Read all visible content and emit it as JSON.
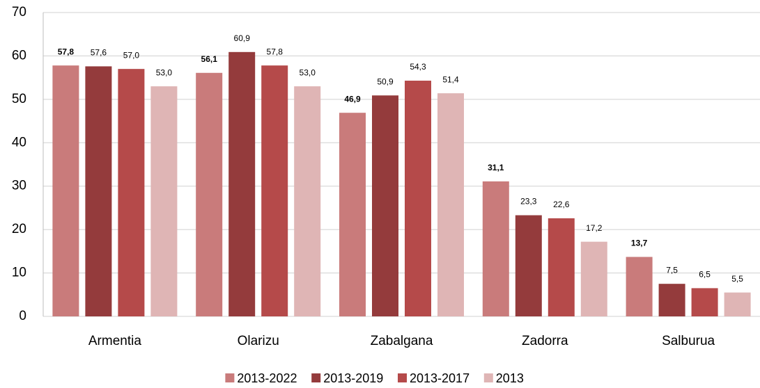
{
  "chart_data": {
    "type": "bar",
    "categories": [
      "Armentia",
      "Olarizu",
      "Zabalgana",
      "Zadorra",
      "Salburua"
    ],
    "series": [
      {
        "name": "2013-2022",
        "color": "#c97b7b",
        "values": [
          57.8,
          56.1,
          46.9,
          31.1,
          13.7
        ],
        "value_labels": [
          "57,8",
          "56,1",
          "46,9",
          "31,1",
          "13,7"
        ]
      },
      {
        "name": "2013-2019",
        "color": "#943b3c",
        "values": [
          57.6,
          60.9,
          50.9,
          23.3,
          7.5
        ],
        "value_labels": [
          "57,6",
          "60,9",
          "50,9",
          "23,3",
          "7,5"
        ]
      },
      {
        "name": "2013-2017",
        "color": "#b54a4a",
        "values": [
          57.0,
          57.8,
          54.3,
          22.6,
          6.5
        ],
        "value_labels": [
          "57,0",
          "57,8",
          "54,3",
          "22,6",
          "6,5"
        ]
      },
      {
        "name": "2013",
        "color": "#dfb5b5",
        "values": [
          53.0,
          53.0,
          51.4,
          17.2,
          5.5
        ],
        "value_labels": [
          "53,0",
          "53,0",
          "51,4",
          "17,2",
          "5,5"
        ]
      }
    ],
    "ylim": [
      0,
      70
    ],
    "yticks": [
      0,
      10,
      20,
      30,
      40,
      50,
      60,
      70
    ],
    "grid": true,
    "legend": "bottom"
  }
}
